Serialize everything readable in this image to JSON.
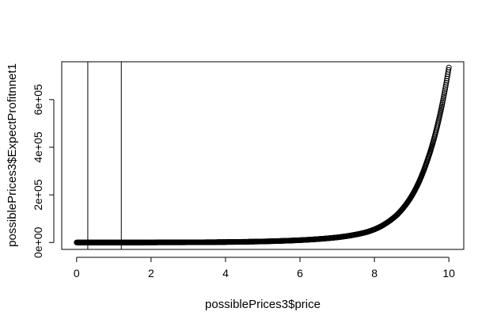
{
  "chart_data": {
    "type": "scatter",
    "title": "",
    "xlabel": "possiblePrices3$price",
    "ylabel": "possiblePrices3$ExpectProfitnnet1",
    "xlim": [
      -0.4,
      10.4
    ],
    "ylim": [
      -29000,
      759000
    ],
    "x_ticks": [
      0,
      2,
      4,
      6,
      8,
      10
    ],
    "x_tick_labels": [
      "0",
      "2",
      "4",
      "6",
      "8",
      "10"
    ],
    "y_ticks": [
      0,
      200000,
      400000,
      600000
    ],
    "y_tick_labels": [
      "0e+00",
      "2e+05",
      "4e+05",
      "6e+05"
    ],
    "marker": "open-circle",
    "vertical_lines": [
      0.3,
      1.2
    ],
    "series": [
      {
        "x": [
          0,
          0.5,
          1,
          1.5,
          2,
          2.5,
          3,
          3.5,
          4,
          4.5,
          5,
          5.5,
          6,
          6.5,
          7,
          7.2,
          7.4,
          7.6,
          7.8,
          8,
          8.2,
          8.4,
          8.6,
          8.8,
          9,
          9.2,
          9.4,
          9.6,
          9.8,
          10
        ],
        "values": [
          0,
          30,
          70,
          140,
          260,
          450,
          750,
          1200,
          1900,
          2900,
          4400,
          6600,
          9800,
          14500,
          21500,
          25500,
          30500,
          36500,
          44000,
          55000,
          70000,
          90000,
          115000,
          150000,
          195000,
          255000,
          335000,
          435000,
          565000,
          735000
        ]
      }
    ],
    "grid": false,
    "legend": "none"
  }
}
